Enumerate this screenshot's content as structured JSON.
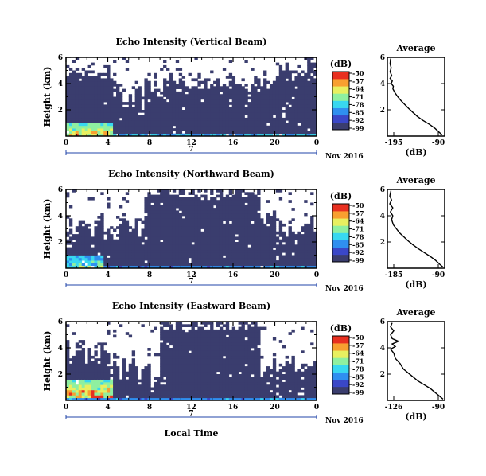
{
  "figure": {
    "date_label": "Nov 2016",
    "day_label": "7",
    "xlabel": "Local Time"
  },
  "chart_data": [
    {
      "type": "heatmap",
      "title": "Echo Intensity (Vertical Beam)",
      "xlabel": "Local Time",
      "ylabel": "Height (km)",
      "x_ticks": [
        "0",
        "4",
        "8",
        "12",
        "16",
        "20",
        "0"
      ],
      "x_range_hours": [
        0,
        24
      ],
      "y_ticks": [
        "2",
        "4",
        "6"
      ],
      "y_range_km": [
        0,
        6
      ],
      "colorbar": {
        "label": "(dB)",
        "ticks": [
          "-50",
          "-57",
          "-64",
          "-71",
          "-78",
          "-85",
          "-92",
          "-99"
        ],
        "range": [
          -99,
          -50
        ]
      },
      "color_scale": [
        "#3a3d6e",
        "#3a47c8",
        "#2f8ff0",
        "#38d8f0",
        "#8ff0a0",
        "#e8f060",
        "#f8a030",
        "#e83020"
      ],
      "profile": {
        "title": "Average",
        "xlabel": "(dB)",
        "x_ticks": [
          "-195",
          "-90"
        ],
        "x_range": [
          -195,
          -90
        ],
        "y_ticks": [
          "2",
          "4",
          "6"
        ],
        "y_range": [
          0,
          6
        ],
        "points": [
          [
            -95,
            0.1
          ],
          [
            -100,
            0.3
          ],
          [
            -108,
            0.6
          ],
          [
            -118,
            0.9
          ],
          [
            -130,
            1.2
          ],
          [
            -140,
            1.5
          ],
          [
            -148,
            1.8
          ],
          [
            -156,
            2.1
          ],
          [
            -163,
            2.4
          ],
          [
            -170,
            2.7
          ],
          [
            -176,
            3.0
          ],
          [
            -181,
            3.3
          ],
          [
            -185,
            3.6
          ],
          [
            -184,
            3.8
          ],
          [
            -188,
            4.0
          ],
          [
            -186,
            4.2
          ],
          [
            -190,
            4.4
          ],
          [
            -187,
            4.6
          ],
          [
            -190,
            4.9
          ],
          [
            -188,
            5.2
          ],
          [
            -190,
            5.5
          ],
          [
            -189,
            5.9
          ]
        ]
      }
    },
    {
      "type": "heatmap",
      "title": "Echo Intensity (Northward Beam)",
      "xlabel": "Local Time",
      "ylabel": "Height (km)",
      "x_ticks": [
        "0",
        "4",
        "8",
        "12",
        "16",
        "20",
        "0"
      ],
      "x_range_hours": [
        0,
        24
      ],
      "y_ticks": [
        "2",
        "4",
        "6"
      ],
      "y_range_km": [
        0,
        6
      ],
      "colorbar": {
        "label": "(dB)",
        "ticks": [
          "-50",
          "-57",
          "-64",
          "-71",
          "-78",
          "-85",
          "-92",
          "-99"
        ],
        "range": [
          -99,
          -50
        ]
      },
      "color_scale": [
        "#3a3d6e",
        "#3a47c8",
        "#2f8ff0",
        "#38d8f0",
        "#8ff0a0",
        "#e8f060",
        "#f8a030",
        "#e83020"
      ],
      "profile": {
        "title": "Average",
        "xlabel": "(dB)",
        "x_ticks": [
          "-185",
          "-90"
        ],
        "x_range": [
          -185,
          -90
        ],
        "y_ticks": [
          "2",
          "4",
          "6"
        ],
        "y_range": [
          0,
          6
        ],
        "points": [
          [
            -93,
            0.1
          ],
          [
            -98,
            0.3
          ],
          [
            -105,
            0.6
          ],
          [
            -114,
            0.9
          ],
          [
            -124,
            1.2
          ],
          [
            -134,
            1.5
          ],
          [
            -143,
            1.8
          ],
          [
            -151,
            2.1
          ],
          [
            -158,
            2.4
          ],
          [
            -165,
            2.7
          ],
          [
            -170,
            3.0
          ],
          [
            -175,
            3.3
          ],
          [
            -178,
            3.7
          ],
          [
            -176,
            4.0
          ],
          [
            -180,
            4.3
          ],
          [
            -176,
            4.6
          ],
          [
            -181,
            4.9
          ],
          [
            -178,
            5.2
          ],
          [
            -181,
            5.5
          ],
          [
            -179,
            5.9
          ]
        ]
      }
    },
    {
      "type": "heatmap",
      "title": "Echo Intensity (Eastward Beam)",
      "xlabel": "Local Time",
      "ylabel": "Height (km)",
      "x_ticks": [
        "0",
        "4",
        "8",
        "12",
        "16",
        "20",
        "0"
      ],
      "x_range_hours": [
        0,
        24
      ],
      "y_ticks": [
        "2",
        "4",
        "6"
      ],
      "y_range_km": [
        0,
        6
      ],
      "colorbar": {
        "label": "(dB)",
        "ticks": [
          "-50",
          "-57",
          "-64",
          "-71",
          "-78",
          "-85",
          "-92",
          "-99"
        ],
        "range": [
          -99,
          -50
        ]
      },
      "color_scale": [
        "#3a3d6e",
        "#3a47c8",
        "#2f8ff0",
        "#38d8f0",
        "#8ff0a0",
        "#e8f060",
        "#f8a030",
        "#e83020"
      ],
      "profile": {
        "title": "Average",
        "xlabel": "(dB)",
        "x_ticks": [
          "-126",
          "-90"
        ],
        "x_range": [
          -126,
          -90
        ],
        "y_ticks": [
          "2",
          "4",
          "6"
        ],
        "y_range": [
          0,
          6
        ],
        "points": [
          [
            -91,
            0.1
          ],
          [
            -93,
            0.3
          ],
          [
            -96,
            0.6
          ],
          [
            -99,
            0.9
          ],
          [
            -103,
            1.2
          ],
          [
            -107,
            1.5
          ],
          [
            -110,
            1.8
          ],
          [
            -113,
            2.1
          ],
          [
            -116,
            2.4
          ],
          [
            -118,
            2.8
          ],
          [
            -121,
            3.2
          ],
          [
            -122,
            3.6
          ],
          [
            -124,
            3.9
          ],
          [
            -121,
            4.1
          ],
          [
            -123,
            4.3
          ],
          [
            -119,
            4.5
          ],
          [
            -123,
            4.7
          ],
          [
            -124,
            5.0
          ],
          [
            -122,
            5.3
          ],
          [
            -124,
            5.6
          ],
          [
            -123,
            5.9
          ]
        ]
      }
    }
  ]
}
